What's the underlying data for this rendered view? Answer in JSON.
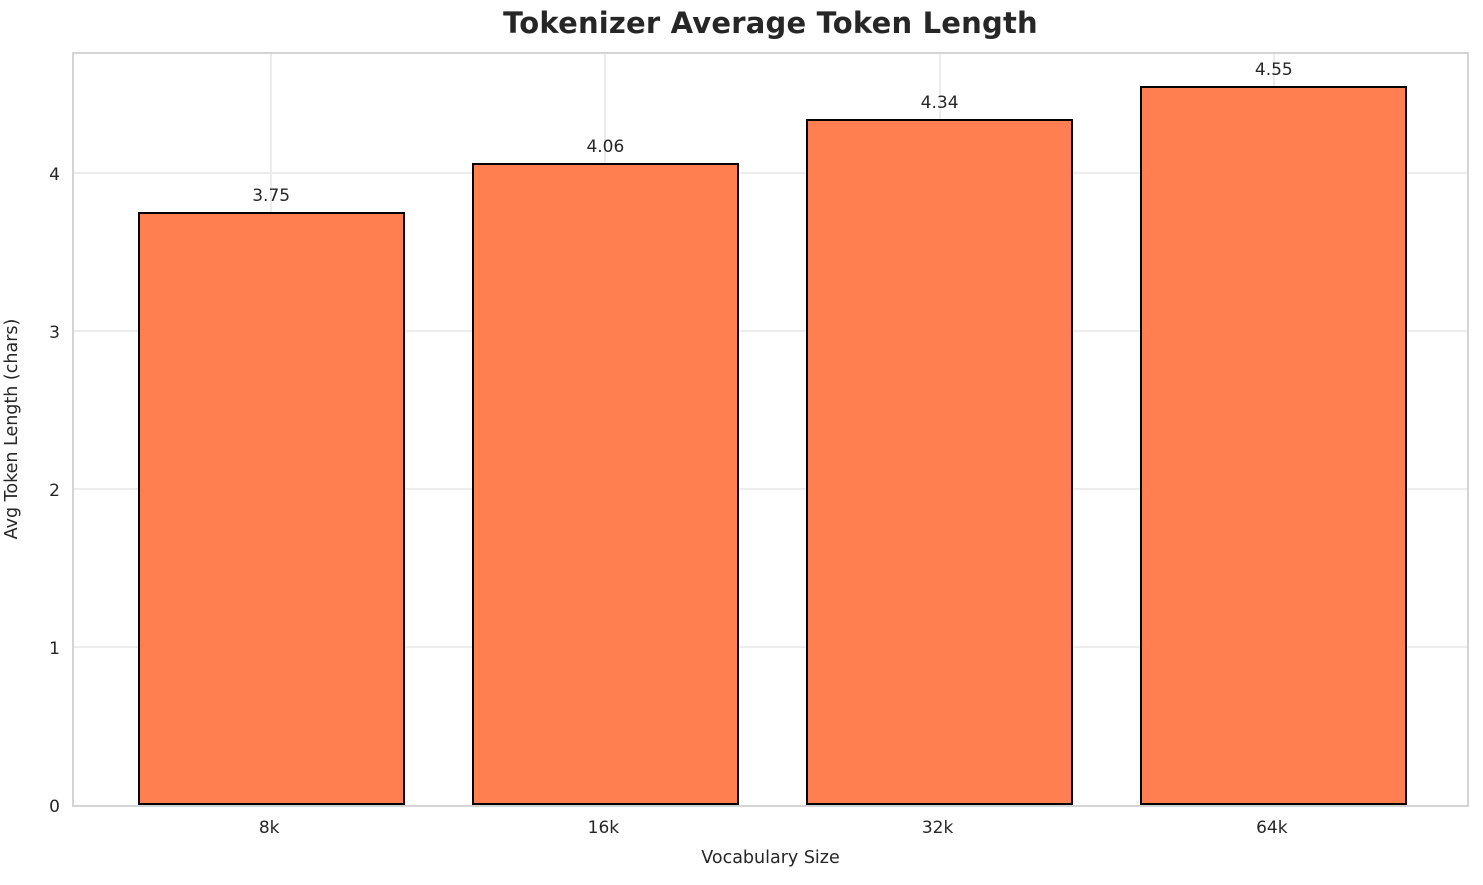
{
  "chart_data": {
    "type": "bar",
    "title": "Tokenizer Average Token Length",
    "xlabel": "Vocabulary Size",
    "ylabel": "Avg Token Length (chars)",
    "categories": [
      "8k",
      "16k",
      "32k",
      "64k"
    ],
    "values": [
      3.75,
      4.06,
      4.34,
      4.55
    ],
    "value_labels": [
      "3.75",
      "4.06",
      "4.34",
      "4.55"
    ],
    "yticks": [
      0,
      1,
      2,
      3,
      4
    ],
    "ylim": [
      0,
      4.7775
    ],
    "grid": true,
    "legend_position": "none",
    "bar_color": "#FF7F50",
    "bar_edge_color": "#000000",
    "text_color": "#262626",
    "grid_color": "#ececec",
    "spine_color": "#d4d4d4",
    "background_color": "#ffffff"
  }
}
